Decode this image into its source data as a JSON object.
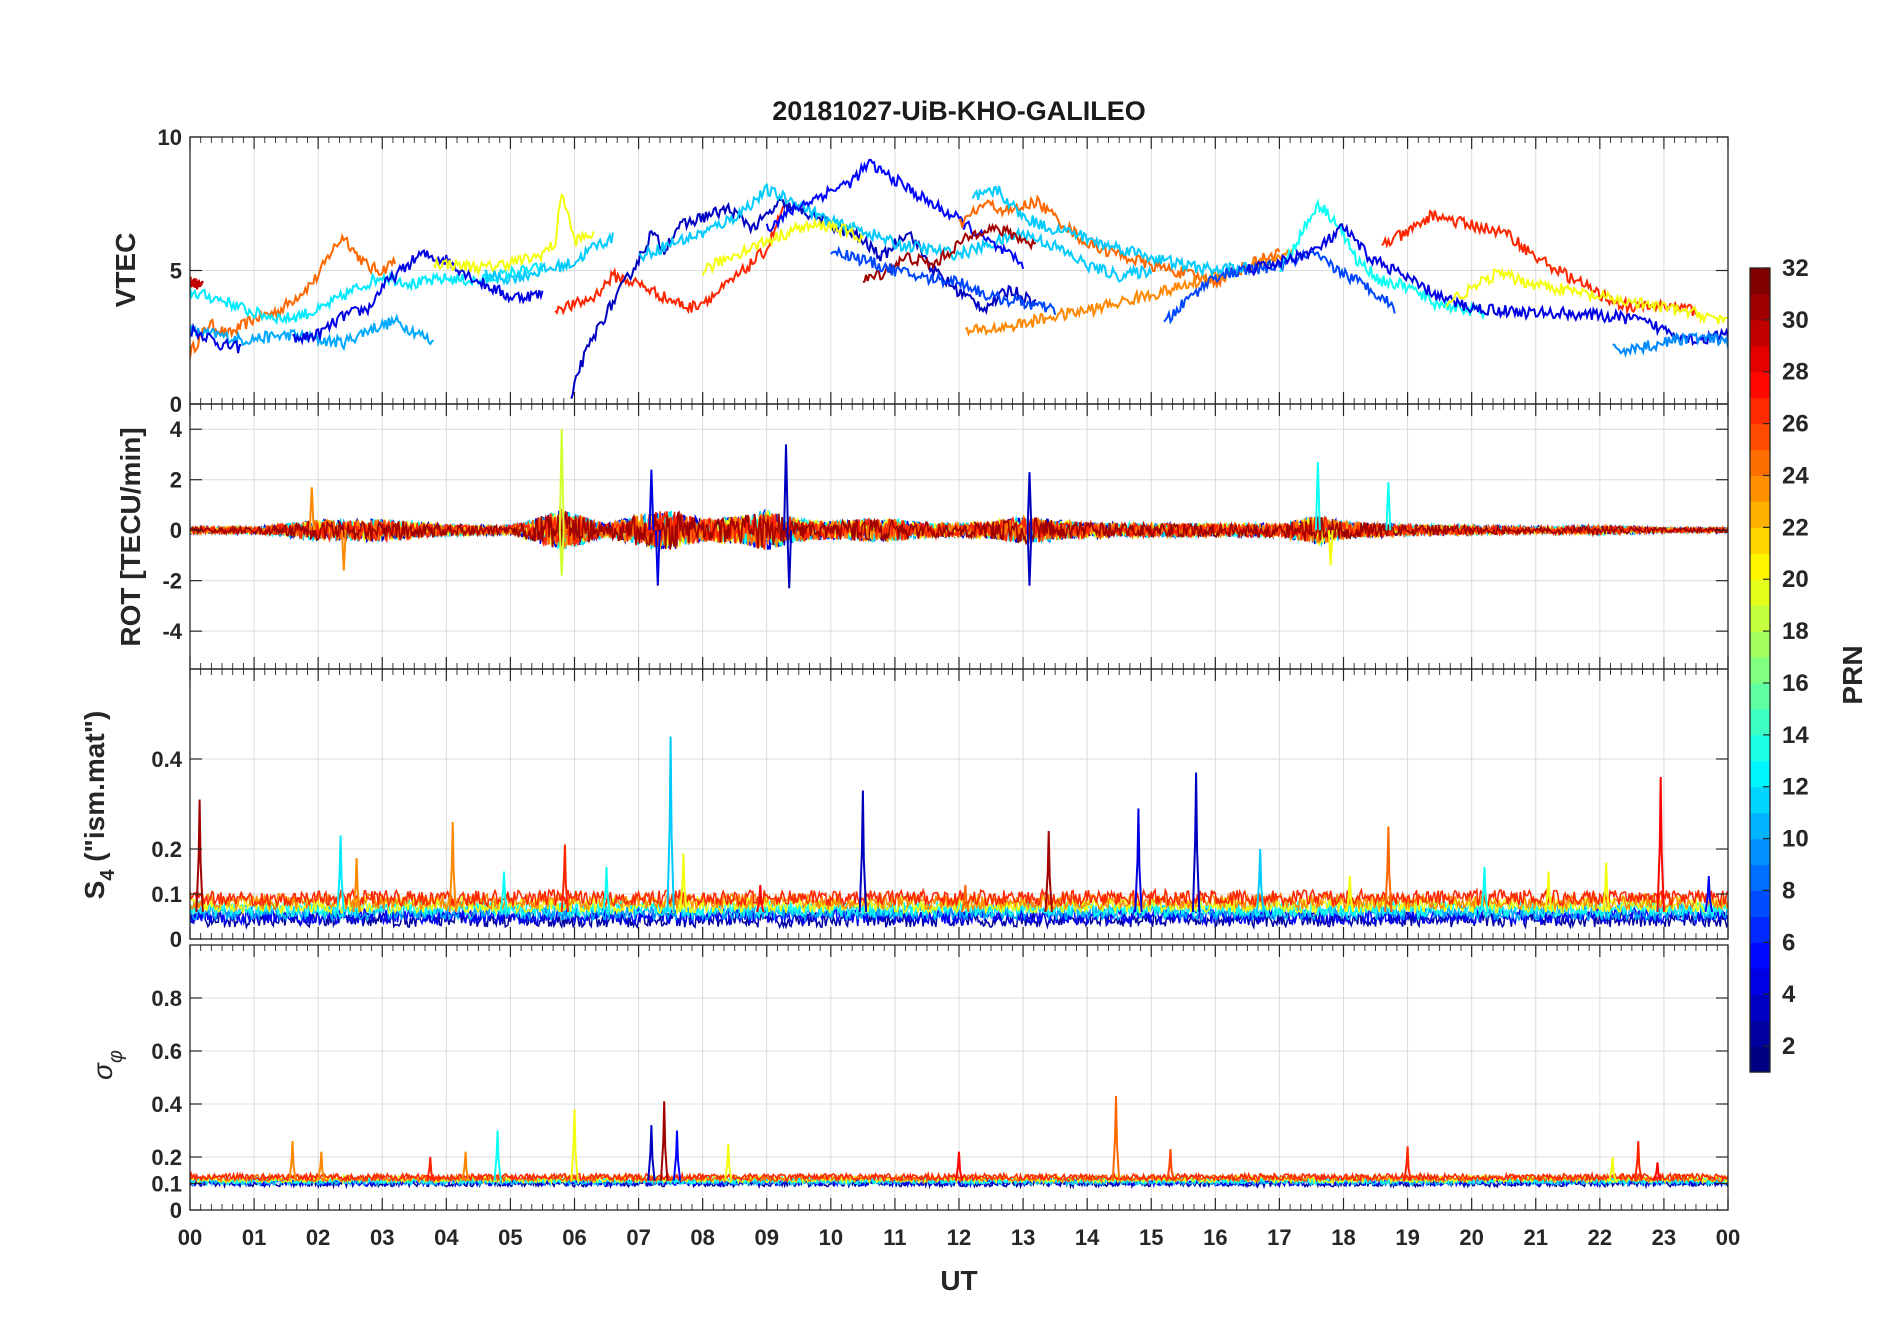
{
  "figure": {
    "title": "20181027-UiB-KHO-GALILEO"
  },
  "colors": {
    "colormap": "jet",
    "axes": "#262626",
    "grid": "#dcdcdc"
  },
  "chart_data": [
    {
      "type": "line",
      "panel": "vtec",
      "ylabel": "VTEC",
      "ylim": [
        0,
        10
      ],
      "yticks": [
        0,
        5,
        10
      ],
      "xlim": [
        0,
        24
      ],
      "grid": true,
      "series": [
        {
          "prn": 25,
          "x": [
            0.0,
            0.3,
            0.6,
            1.0,
            1.4,
            1.8,
            2.0,
            2.2,
            2.4,
            2.6,
            2.8,
            3.0,
            3.2
          ],
          "y": [
            1.9,
            3.0,
            2.6,
            3.2,
            3.5,
            4.3,
            4.8,
            5.7,
            6.3,
            5.6,
            5.1,
            5.0,
            5.4
          ]
        },
        {
          "prn": 10,
          "x": [
            0.0,
            0.4,
            0.8,
            1.2,
            1.6,
            2.0,
            2.4,
            2.8,
            3.2,
            3.6,
            3.8
          ],
          "y": [
            2.7,
            2.6,
            2.4,
            2.5,
            2.6,
            2.4,
            2.3,
            2.8,
            3.1,
            2.6,
            2.3
          ]
        },
        {
          "prn": 4,
          "x": [
            0.0,
            0.3,
            0.5,
            0.8
          ],
          "y": [
            2.8,
            2.5,
            2.2,
            2.1
          ]
        },
        {
          "prn": 30,
          "x": [
            0.0,
            0.2
          ],
          "y": [
            4.6,
            4.4
          ]
        },
        {
          "prn": 12,
          "x": [
            0.0,
            0.5,
            1.0,
            1.5,
            2.0,
            2.5,
            3.0,
            3.5,
            4.0,
            4.5,
            5.0,
            5.5
          ],
          "y": [
            4.2,
            3.9,
            3.4,
            3.2,
            3.5,
            4.2,
            4.8,
            4.5,
            4.7,
            4.6,
            4.9,
            5.1
          ]
        },
        {
          "prn": 4,
          "x": [
            1.6,
            2.0,
            2.4,
            2.8,
            3.0,
            3.3,
            3.6,
            4.0,
            4.5,
            5.0,
            5.5
          ],
          "y": [
            2.4,
            2.6,
            3.3,
            3.6,
            4.4,
            5.0,
            5.6,
            5.4,
            4.6,
            4.0,
            4.1
          ]
        },
        {
          "prn": 20,
          "x": [
            3.8,
            4.2,
            4.6,
            5.0,
            5.4,
            5.7,
            5.8,
            6.0,
            6.3
          ],
          "y": [
            5.3,
            5.2,
            5.1,
            5.3,
            5.5,
            6.0,
            8.0,
            6.1,
            6.4
          ]
        },
        {
          "prn": 11,
          "x": [
            4.6,
            5.0,
            5.5,
            6.0,
            6.3,
            6.6
          ],
          "y": [
            4.8,
            4.7,
            5.0,
            5.3,
            5.9,
            6.2
          ]
        },
        {
          "prn": 27,
          "x": [
            5.7,
            6.0,
            6.3,
            6.6,
            7.0,
            7.4,
            7.8,
            8.2,
            8.6,
            9.0,
            9.3
          ],
          "y": [
            3.6,
            3.7,
            4.0,
            4.8,
            4.5,
            4.0,
            3.6,
            4.1,
            4.9,
            5.8,
            7.6
          ]
        },
        {
          "prn": 3,
          "x": [
            5.95,
            6.05,
            6.2,
            6.4,
            6.6,
            6.8,
            7.0,
            7.2,
            7.4,
            7.6,
            8.0,
            8.4,
            8.8,
            9.2,
            9.6,
            10.0,
            10.4,
            10.8,
            11.2,
            11.6,
            12.0,
            12.4,
            12.8,
            13.2
          ],
          "y": [
            0.0,
            1.2,
            2.0,
            3.0,
            3.8,
            4.6,
            5.4,
            6.4,
            5.8,
            6.6,
            7.0,
            7.3,
            6.6,
            7.5,
            7.2,
            6.7,
            6.3,
            5.5,
            6.5,
            5.0,
            4.2,
            3.6,
            4.3,
            3.8
          ]
        },
        {
          "prn": 11,
          "x": [
            7.0,
            7.5,
            8.0,
            8.5,
            9.0,
            9.5,
            10.0,
            10.5,
            11.0,
            11.5,
            12.0,
            12.5,
            13.0,
            13.5,
            14.0,
            14.5,
            15.0
          ],
          "y": [
            5.5,
            6.0,
            6.4,
            7.0,
            8.0,
            7.5,
            6.8,
            6.5,
            6.0,
            5.8,
            5.6,
            6.0,
            6.4,
            5.9,
            5.2,
            4.8,
            5.0
          ]
        },
        {
          "prn": 5,
          "x": [
            9.0,
            9.5,
            10.0,
            10.3,
            10.6,
            11.0,
            11.5,
            12.0,
            12.5,
            13.0
          ],
          "y": [
            6.6,
            7.4,
            8.0,
            8.3,
            9.0,
            8.4,
            7.6,
            6.9,
            6.0,
            5.2
          ]
        },
        {
          "prn": 20,
          "x": [
            8.0,
            8.5,
            9.0,
            9.5,
            10.0,
            10.5
          ],
          "y": [
            5.0,
            5.6,
            6.1,
            6.6,
            6.7,
            6.2
          ]
        },
        {
          "prn": 31,
          "x": [
            10.5,
            10.8,
            11.2,
            11.6,
            12.0,
            12.4,
            12.8,
            13.2
          ],
          "y": [
            4.6,
            4.9,
            5.5,
            5.2,
            6.0,
            6.6,
            6.4,
            5.9
          ]
        },
        {
          "prn": 7,
          "x": [
            10.0,
            10.5,
            11.0,
            11.5,
            12.0,
            12.5,
            13.0,
            13.5
          ],
          "y": [
            5.8,
            5.4,
            5.0,
            4.7,
            4.6,
            4.0,
            3.8,
            3.5
          ]
        },
        {
          "prn": 25,
          "x": [
            12.0,
            12.4,
            12.8,
            13.2,
            13.5,
            14.0,
            14.5,
            15.0,
            15.5,
            16.0,
            16.5,
            17.0
          ],
          "y": [
            6.7,
            7.5,
            7.2,
            7.6,
            7.0,
            6.0,
            5.6,
            5.2,
            4.9,
            4.6,
            5.2,
            5.7
          ]
        },
        {
          "prn": 24,
          "x": [
            12.1,
            12.5,
            13.0,
            13.5,
            14.0,
            14.5,
            15.0,
            15.5,
            16.0,
            16.5,
            17.0,
            17.2
          ],
          "y": [
            2.7,
            2.8,
            3.0,
            3.3,
            3.5,
            3.8,
            4.1,
            4.4,
            4.8,
            5.1,
            5.5,
            5.6
          ]
        },
        {
          "prn": 11,
          "x": [
            12.2,
            12.6,
            13.0,
            13.4,
            13.8,
            14.2,
            14.6,
            15.0,
            15.5,
            16.0,
            16.5
          ],
          "y": [
            7.7,
            8.0,
            7.0,
            6.6,
            6.4,
            6.0,
            5.8,
            5.5,
            5.2,
            5.0,
            5.1
          ]
        },
        {
          "prn": 7,
          "x": [
            15.2,
            15.6,
            16.0,
            16.5,
            17.0,
            17.5,
            18.0,
            18.5,
            18.8
          ],
          "y": [
            3.0,
            4.0,
            4.8,
            5.0,
            5.2,
            5.6,
            4.9,
            4.2,
            3.6
          ]
        },
        {
          "prn": 13,
          "x": [
            17.0,
            17.3,
            17.6,
            17.9,
            18.2,
            18.6,
            19.0,
            19.4,
            19.8,
            20.2
          ],
          "y": [
            5.0,
            6.2,
            7.5,
            6.8,
            5.4,
            4.6,
            4.4,
            3.8,
            3.6,
            3.4
          ]
        },
        {
          "prn": 4,
          "x": [
            16.5,
            17.0,
            17.6,
            18.0,
            18.4,
            18.8,
            19.2,
            19.6,
            20.0,
            20.5,
            21.0,
            21.5,
            22.0,
            22.5,
            23.0,
            23.5,
            24.0
          ],
          "y": [
            5.0,
            5.3,
            5.8,
            6.6,
            5.5,
            5.0,
            4.4,
            3.9,
            3.6,
            3.5,
            3.4,
            3.4,
            3.3,
            3.2,
            2.8,
            2.4,
            2.6
          ]
        },
        {
          "prn": 27,
          "x": [
            18.6,
            19.0,
            19.4,
            19.8,
            20.2,
            20.6,
            21.0,
            21.5,
            22.0,
            22.5,
            23.0,
            23.5
          ],
          "y": [
            6.0,
            6.4,
            7.1,
            6.8,
            6.6,
            6.3,
            5.5,
            4.8,
            4.1,
            3.6,
            3.7,
            3.5
          ]
        },
        {
          "prn": 20,
          "x": [
            19.6,
            20.0,
            20.4,
            20.8,
            21.2,
            21.6,
            22.0,
            22.5,
            23.0,
            23.5,
            24.0
          ],
          "y": [
            3.8,
            4.3,
            4.9,
            4.6,
            4.4,
            4.2,
            4.0,
            3.8,
            3.6,
            3.4,
            3.1
          ]
        },
        {
          "prn": 9,
          "x": [
            22.2,
            22.6,
            23.0,
            23.4,
            23.8,
            24.0
          ],
          "y": [
            2.0,
            2.1,
            2.3,
            2.5,
            2.4,
            2.3
          ]
        }
      ]
    },
    {
      "type": "line",
      "panel": "rot",
      "ylabel": "ROT [TECU/min]",
      "ylim": [
        -5.5,
        5
      ],
      "yticks": [
        -4,
        -2,
        0,
        2,
        4
      ],
      "xlim": [
        0,
        24
      ],
      "grid": true,
      "envelope_x": [
        0,
        1,
        2,
        3,
        4,
        5,
        5.8,
        6.5,
        7,
        7.5,
        8,
        8.5,
        9,
        9.5,
        10,
        10.5,
        11,
        11.5,
        12,
        12.5,
        13,
        13.5,
        14,
        15,
        16,
        17,
        17.6,
        18,
        19,
        20,
        21,
        22,
        22.5,
        23,
        24
      ],
      "envelope_amp": [
        0.3,
        0.3,
        0.9,
        1.0,
        0.5,
        0.4,
        1.8,
        0.6,
        1.4,
        1.8,
        1.0,
        1.2,
        1.8,
        1.0,
        0.8,
        1.0,
        1.0,
        0.7,
        0.6,
        0.8,
        1.2,
        0.9,
        0.7,
        0.6,
        0.6,
        0.6,
        1.3,
        0.8,
        0.5,
        0.4,
        0.3,
        0.4,
        0.3,
        0.2,
        0.2
      ],
      "spikes": [
        {
          "x": 5.8,
          "y": 4.0,
          "prn": 19
        },
        {
          "x": 5.8,
          "y": -1.8,
          "prn": 19
        },
        {
          "x": 9.3,
          "y": 3.4,
          "prn": 3
        },
        {
          "x": 9.35,
          "y": -2.3,
          "prn": 3
        },
        {
          "x": 7.3,
          "y": -2.2,
          "prn": 4
        },
        {
          "x": 7.2,
          "y": 2.4,
          "prn": 4
        },
        {
          "x": 13.1,
          "y": 2.3,
          "prn": 3
        },
        {
          "x": 13.1,
          "y": -2.2,
          "prn": 3
        },
        {
          "x": 17.6,
          "y": 2.7,
          "prn": 13
        },
        {
          "x": 17.8,
          "y": -1.4,
          "prn": 20
        },
        {
          "x": 18.7,
          "y": 1.9,
          "prn": 13
        },
        {
          "x": 2.4,
          "y": -1.6,
          "prn": 24
        },
        {
          "x": 1.9,
          "y": 1.7,
          "prn": 24
        }
      ]
    },
    {
      "type": "line",
      "panel": "s4",
      "ylabel": "S4 (\"ism.mat\")",
      "ylabel_main": "S",
      "ylabel_sub": "4",
      "ylabel_rest": " (\"ism.mat\")",
      "ylim": [
        0,
        0.6
      ],
      "yticks": [
        0,
        0.1,
        0.2,
        0.4
      ],
      "xlim": [
        0,
        24
      ],
      "grid": true,
      "baseline": 0.05,
      "spikes": [
        {
          "x": 0.15,
          "y": 0.31,
          "prn": 31
        },
        {
          "x": 2.35,
          "y": 0.23,
          "prn": 12
        },
        {
          "x": 2.6,
          "y": 0.18,
          "prn": 24
        },
        {
          "x": 4.1,
          "y": 0.26,
          "prn": 24
        },
        {
          "x": 4.9,
          "y": 0.15,
          "prn": 13
        },
        {
          "x": 5.85,
          "y": 0.21,
          "prn": 27
        },
        {
          "x": 6.5,
          "y": 0.16,
          "prn": 13
        },
        {
          "x": 7.5,
          "y": 0.45,
          "prn": 11
        },
        {
          "x": 7.7,
          "y": 0.19,
          "prn": 20
        },
        {
          "x": 8.9,
          "y": 0.12,
          "prn": 28
        },
        {
          "x": 10.5,
          "y": 0.33,
          "prn": 3
        },
        {
          "x": 13.4,
          "y": 0.24,
          "prn": 31
        },
        {
          "x": 14.8,
          "y": 0.29,
          "prn": 4
        },
        {
          "x": 15.7,
          "y": 0.37,
          "prn": 3
        },
        {
          "x": 16.7,
          "y": 0.2,
          "prn": 11
        },
        {
          "x": 18.7,
          "y": 0.25,
          "prn": 25
        },
        {
          "x": 18.1,
          "y": 0.14,
          "prn": 20
        },
        {
          "x": 20.2,
          "y": 0.16,
          "prn": 13
        },
        {
          "x": 21.2,
          "y": 0.15,
          "prn": 20
        },
        {
          "x": 22.1,
          "y": 0.17,
          "prn": 20
        },
        {
          "x": 22.95,
          "y": 0.36,
          "prn": 28
        },
        {
          "x": 23.7,
          "y": 0.14,
          "prn": 5
        },
        {
          "x": 12.1,
          "y": 0.12,
          "prn": 25
        }
      ]
    },
    {
      "type": "line",
      "panel": "sigma_phi",
      "ylabel": "σφ",
      "ylabel_main": "σ",
      "ylabel_sub": "φ",
      "ylim": [
        0,
        1
      ],
      "yticks": [
        0,
        0.1,
        0.2,
        0.4,
        0.6,
        0.8
      ],
      "xlim": [
        0,
        24
      ],
      "grid": true,
      "baseline": 0.1,
      "spikes": [
        {
          "x": 1.6,
          "y": 0.26,
          "prn": 24
        },
        {
          "x": 2.05,
          "y": 0.22,
          "prn": 24
        },
        {
          "x": 3.75,
          "y": 0.2,
          "prn": 27
        },
        {
          "x": 4.3,
          "y": 0.22,
          "prn": 24
        },
        {
          "x": 4.8,
          "y": 0.3,
          "prn": 13
        },
        {
          "x": 6.0,
          "y": 0.38,
          "prn": 20
        },
        {
          "x": 7.2,
          "y": 0.32,
          "prn": 3
        },
        {
          "x": 7.4,
          "y": 0.41,
          "prn": 31
        },
        {
          "x": 7.6,
          "y": 0.3,
          "prn": 5
        },
        {
          "x": 8.4,
          "y": 0.25,
          "prn": 20
        },
        {
          "x": 14.45,
          "y": 0.43,
          "prn": 25
        },
        {
          "x": 15.3,
          "y": 0.23,
          "prn": 26
        },
        {
          "x": 12.0,
          "y": 0.22,
          "prn": 28
        },
        {
          "x": 19.0,
          "y": 0.24,
          "prn": 27
        },
        {
          "x": 22.6,
          "y": 0.26,
          "prn": 27
        },
        {
          "x": 22.2,
          "y": 0.2,
          "prn": 20
        },
        {
          "x": 22.9,
          "y": 0.18,
          "prn": 28
        }
      ]
    }
  ],
  "xaxis": {
    "label": "UT",
    "ticks": [
      "00",
      "01",
      "02",
      "03",
      "04",
      "05",
      "06",
      "07",
      "08",
      "09",
      "10",
      "11",
      "12",
      "13",
      "14",
      "15",
      "16",
      "17",
      "18",
      "19",
      "20",
      "21",
      "22",
      "23",
      "00"
    ]
  },
  "colorbar": {
    "label": "PRN",
    "range": [
      1,
      32
    ],
    "ticks": [
      2,
      4,
      6,
      8,
      10,
      12,
      14,
      16,
      18,
      20,
      22,
      24,
      26,
      28,
      30,
      32
    ]
  }
}
